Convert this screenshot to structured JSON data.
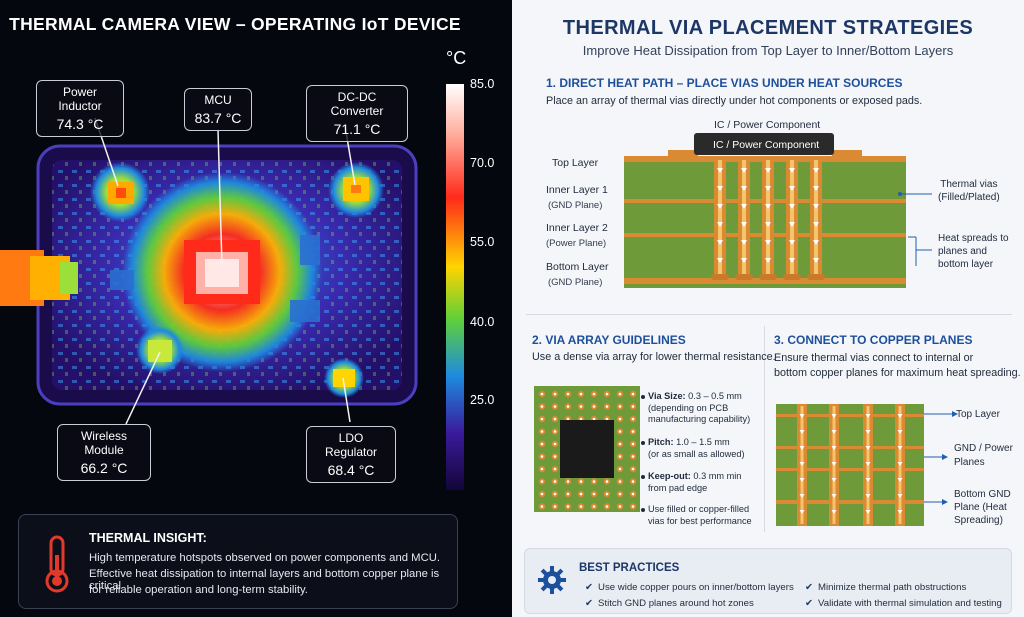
{
  "left": {
    "title": "THERMAL CAMERA VIEW – OPERATING IoT DEVICE",
    "scale": {
      "unit": "°C",
      "ticks": [
        "85.0",
        "70.0",
        "55.0",
        "40.0",
        "25.0"
      ]
    },
    "components": [
      {
        "name": "Power Inductor",
        "temp": "74.3 °C"
      },
      {
        "name": "MCU",
        "temp": "83.7 °C"
      },
      {
        "name": "DC-DC Converter",
        "temp": "71.1 °C"
      },
      {
        "name": "Wireless Module",
        "temp": "66.2 °C"
      },
      {
        "name": "LDO Regulator",
        "temp": "68.4 °C"
      }
    ],
    "insight": {
      "title": "THERMAL INSIGHT:",
      "lines": [
        "High temperature hotspots observed on power components and MCU.",
        "Effective heat dissipation to internal layers and bottom copper plane is critical",
        "for reliable operation and long-term stability."
      ],
      "icon": "thermometer-icon"
    }
  },
  "right": {
    "title": "THERMAL VIA PLACEMENT STRATEGIES",
    "subtitle": "Improve Heat Dissipation from Top Layer to Inner/Bottom Layers",
    "section1": {
      "heading": "1.  DIRECT HEAT PATH – PLACE VIAS UNDER HEAT SOURCES",
      "desc": "Place an array of thermal vias directly under hot components or exposed pads.",
      "component_label": "IC / Power Component",
      "component_label_top": "IC / Power Component",
      "layers": [
        {
          "name": "Top Layer",
          "sub": ""
        },
        {
          "name": "Inner Layer 1",
          "sub": "(GND Plane)"
        },
        {
          "name": "Inner Layer 2",
          "sub": "(Power Plane)"
        },
        {
          "name": "Bottom Layer",
          "sub": "(GND Plane)"
        }
      ],
      "annotations": {
        "vias": [
          "Thermal vias",
          "(Filled/Plated)"
        ],
        "spread": [
          "Heat spreads to",
          "planes and",
          "bottom layer"
        ]
      }
    },
    "section2": {
      "heading": "2.  VIA ARRAY GUIDELINES",
      "desc": "Use a dense via array for lower thermal resistance.",
      "bullets": [
        {
          "label": "Via Size:",
          "value": " 0.3 – 0.5 mm",
          "extra": [
            "(depending on PCB",
            "manufacturing capability)"
          ]
        },
        {
          "label": "Pitch:",
          "value": " 1.0 – 1.5 mm",
          "extra": [
            "(or as small as allowed)"
          ]
        },
        {
          "label": "Keep-out:",
          "value": " 0.3 mm min",
          "extra": [
            "from pad edge"
          ]
        },
        {
          "label": "",
          "value": "Use filled or copper-filled",
          "extra": [
            "vias for best performance"
          ]
        }
      ]
    },
    "section3": {
      "heading": "3.  CONNECT TO COPPER PLANES",
      "desc": [
        "Ensure thermal vias connect to internal or",
        "bottom copper planes for maximum heat spreading."
      ],
      "labels": {
        "top": [
          "Top Layer"
        ],
        "mid": [
          "GND / Power",
          "Planes"
        ],
        "bottom": [
          "Bottom GND",
          "Plane (Heat",
          "Spreading)"
        ]
      }
    },
    "best_practices": {
      "title": "BEST PRACTICES",
      "icon": "gear-icon",
      "items": [
        "Use wide copper pours on inner/bottom layers",
        "Minimize thermal path obstructions",
        "Stitch GND planes around hot zones",
        "Validate with thermal simulation and testing"
      ]
    }
  },
  "colors": {
    "copper": "#d98a32",
    "pcb_green": "#6f9a3a",
    "heading_blue": "#1e4f9c",
    "title_navy": "#1c3666",
    "hot": "#ffffff",
    "warm": "#ff2a1a",
    "mid": "#ffd400",
    "cool": "#1e8ae0",
    "cold": "#20106a"
  }
}
